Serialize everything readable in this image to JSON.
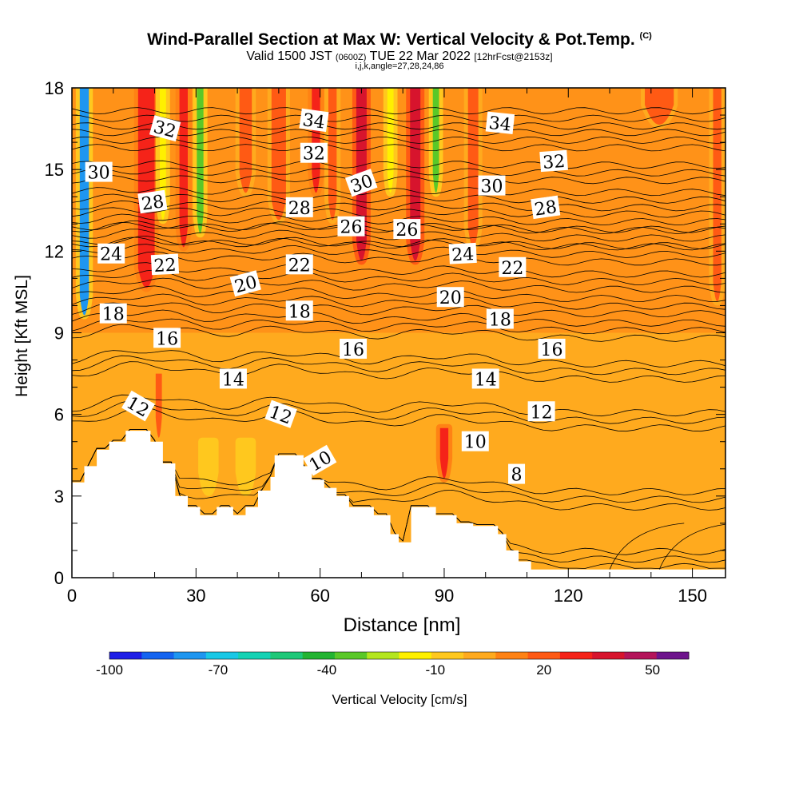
{
  "header": {
    "title": "Wind-Parallel Section at Max W: Vertical Velocity & Pot.Temp.",
    "title_mark": "(C)",
    "valid_text": "Valid 1500 JST",
    "valid_utc": "(0600Z)",
    "date_text": "TUE 22 Mar 2022",
    "forecast_text": "[12hrFcst@2153z]",
    "indices_text": "i,j,k,angle=27,28,24,86"
  },
  "chart_data": {
    "type": "heatmap",
    "xlabel": "Distance [nm]",
    "ylabel": "Height [Kft MSL]",
    "xlim": [
      0,
      158
    ],
    "ylim": [
      0,
      18
    ],
    "x_ticks": [
      0,
      30,
      60,
      90,
      120,
      150
    ],
    "y_ticks": [
      0,
      3,
      6,
      9,
      12,
      15,
      18
    ],
    "terrain": [
      [
        0,
        3.5
      ],
      [
        3,
        3.5
      ],
      [
        3,
        4.1
      ],
      [
        6,
        4.1
      ],
      [
        6,
        4.7
      ],
      [
        9,
        4.7
      ],
      [
        9,
        5.0
      ],
      [
        13,
        5.0
      ],
      [
        13,
        5.4
      ],
      [
        19,
        5.4
      ],
      [
        19,
        5.0
      ],
      [
        22,
        5.0
      ],
      [
        22,
        4.2
      ],
      [
        25,
        4.2
      ],
      [
        25,
        3.0
      ],
      [
        28,
        3.0
      ],
      [
        28,
        2.6
      ],
      [
        31,
        2.6
      ],
      [
        31,
        2.3
      ],
      [
        35,
        2.3
      ],
      [
        35,
        2.6
      ],
      [
        39,
        2.6
      ],
      [
        39,
        2.3
      ],
      [
        42,
        2.3
      ],
      [
        42,
        2.6
      ],
      [
        45,
        2.6
      ],
      [
        45,
        3.2
      ],
      [
        48,
        3.2
      ],
      [
        48,
        3.7
      ],
      [
        49,
        3.7
      ],
      [
        49,
        4.5
      ],
      [
        56,
        4.5
      ],
      [
        56,
        4.1
      ],
      [
        58,
        4.1
      ],
      [
        58,
        3.6
      ],
      [
        61,
        3.6
      ],
      [
        61,
        3.3
      ],
      [
        64,
        3.3
      ],
      [
        64,
        3.0
      ],
      [
        67,
        3.0
      ],
      [
        67,
        2.6
      ],
      [
        73,
        2.6
      ],
      [
        73,
        2.3
      ],
      [
        77,
        2.3
      ],
      [
        77,
        1.6
      ],
      [
        79,
        1.6
      ],
      [
        79,
        1.3
      ],
      [
        82,
        1.3
      ],
      [
        82,
        2.6
      ],
      [
        88,
        2.6
      ],
      [
        88,
        2.3
      ],
      [
        93,
        2.3
      ],
      [
        93,
        2.0
      ],
      [
        97,
        2.0
      ],
      [
        97,
        1.9
      ],
      [
        103,
        1.9
      ],
      [
        103,
        1.6
      ],
      [
        105,
        1.6
      ],
      [
        105,
        1.0
      ],
      [
        108,
        1.0
      ],
      [
        108,
        0.6
      ],
      [
        111,
        0.6
      ],
      [
        111,
        0.3
      ],
      [
        113,
        0.3
      ],
      [
        113,
        0.3
      ],
      [
        158,
        0.3
      ]
    ],
    "vertical_velocity_bands": [
      {
        "x": 3,
        "w": 2.2,
        "value": -75,
        "ymin": 9.5
      },
      {
        "x": 18,
        "w": 4,
        "value": 30,
        "ymin": 10.5
      },
      {
        "x": 22,
        "w": 1.5,
        "value": -20,
        "ymin": 13
      },
      {
        "x": 27,
        "w": 2,
        "value": 30,
        "ymin": 12
      },
      {
        "x": 31,
        "w": 1.6,
        "value": -30,
        "ymin": 12.5
      },
      {
        "x": 42,
        "w": 3,
        "value": 20,
        "ymin": 14
      },
      {
        "x": 50,
        "w": 3.5,
        "value": 20,
        "ymin": 13
      },
      {
        "x": 59,
        "w": 2,
        "value": 30,
        "ymin": 14
      },
      {
        "x": 63,
        "w": 2,
        "value": 20,
        "ymin": 13
      },
      {
        "x": 70,
        "w": 2.5,
        "value": 40,
        "ymin": 11.5
      },
      {
        "x": 77,
        "w": 1.5,
        "value": -20,
        "ymin": 14
      },
      {
        "x": 83,
        "w": 2.5,
        "value": 40,
        "ymin": 11.5
      },
      {
        "x": 88,
        "w": 1.5,
        "value": -30,
        "ymin": 14
      },
      {
        "x": 97,
        "w": 2.5,
        "value": 20,
        "ymin": 12
      },
      {
        "x": 142,
        "w": 7,
        "value": 20,
        "ymin": 16.5
      },
      {
        "x": 156,
        "w": 2,
        "value": 20,
        "ymin": 10
      },
      {
        "x": 21,
        "w": 1.5,
        "value": 20,
        "ymin": 5,
        "ymax": 7.5
      },
      {
        "x": 90,
        "w": 2,
        "value": 30,
        "ymin": 3.5,
        "ymax": 5.5
      },
      {
        "x": 33,
        "w": 3,
        "value": -10,
        "ymin": 3,
        "ymax": 5
      },
      {
        "x": 42,
        "w": 3,
        "value": -10,
        "ymin": 3,
        "ymax": 5
      }
    ],
    "theta_contours": [
      {
        "label": "8",
        "h0": 0.4,
        "step": 0
      },
      {
        "label": "10",
        "h0": 2.6,
        "step": 0.5
      },
      {
        "label": "12",
        "h0": 5.5,
        "step": 0.5
      },
      {
        "label": "14",
        "h0": 7.3,
        "step": 0.5
      },
      {
        "label": "16",
        "h0": 8.8,
        "step": 0.5
      },
      {
        "label": "18",
        "h0": 9.7,
        "step": 0.5
      },
      {
        "label": "20",
        "h0": 10.6,
        "step": 0.5
      },
      {
        "label": "22",
        "h0": 11.6,
        "step": 0.5
      },
      {
        "label": "24",
        "h0": 12.2,
        "step": 0.5
      },
      {
        "label": "26",
        "h0": 12.8,
        "step": 0.5
      },
      {
        "label": "28",
        "h0": 13.6,
        "step": 0.5
      },
      {
        "label": "30",
        "h0": 14.6,
        "step": 0.5
      },
      {
        "label": "32",
        "h0": 15.8,
        "step": 0.5
      },
      {
        "label": "34",
        "h0": 16.6,
        "step": 0.5
      }
    ],
    "contour_labels": [
      {
        "text": "32",
        "x": 22.5,
        "y": 16.5,
        "rot": 15
      },
      {
        "text": "34",
        "x": 58.5,
        "y": 16.8,
        "rot": 8
      },
      {
        "text": "34",
        "x": 103.5,
        "y": 16.7,
        "rot": 6
      },
      {
        "text": "30",
        "x": 6.5,
        "y": 14.9,
        "rot": 0
      },
      {
        "text": "32",
        "x": 58.5,
        "y": 15.6,
        "rot": 0
      },
      {
        "text": "32",
        "x": 116.5,
        "y": 15.3,
        "rot": -4
      },
      {
        "text": "30",
        "x": 70,
        "y": 14.5,
        "rot": -20
      },
      {
        "text": "30",
        "x": 101.5,
        "y": 14.4,
        "rot": 0
      },
      {
        "text": "28",
        "x": 19.5,
        "y": 13.8,
        "rot": -8
      },
      {
        "text": "28",
        "x": 55,
        "y": 13.6,
        "rot": 0
      },
      {
        "text": "28",
        "x": 114.5,
        "y": 13.6,
        "rot": -8
      },
      {
        "text": "26",
        "x": 67.5,
        "y": 12.9,
        "rot": 0
      },
      {
        "text": "26",
        "x": 81,
        "y": 12.8,
        "rot": 0
      },
      {
        "text": "24",
        "x": 9.5,
        "y": 11.9,
        "rot": 0
      },
      {
        "text": "24",
        "x": 94.5,
        "y": 11.9,
        "rot": -3
      },
      {
        "text": "22",
        "x": 22.5,
        "y": 11.5,
        "rot": -3
      },
      {
        "text": "22",
        "x": 55,
        "y": 11.5,
        "rot": 0
      },
      {
        "text": "22",
        "x": 106.5,
        "y": 11.4,
        "rot": 0
      },
      {
        "text": "20",
        "x": 42,
        "y": 10.8,
        "rot": -15
      },
      {
        "text": "20",
        "x": 91.5,
        "y": 10.3,
        "rot": 0
      },
      {
        "text": "18",
        "x": 10,
        "y": 9.7,
        "rot": 0
      },
      {
        "text": "18",
        "x": 55,
        "y": 9.8,
        "rot": 0
      },
      {
        "text": "18",
        "x": 103.5,
        "y": 9.5,
        "rot": 0
      },
      {
        "text": "16",
        "x": 23,
        "y": 8.8,
        "rot": 0
      },
      {
        "text": "16",
        "x": 68,
        "y": 8.4,
        "rot": 0
      },
      {
        "text": "16",
        "x": 116,
        "y": 8.4,
        "rot": 0
      },
      {
        "text": "14",
        "x": 39,
        "y": 7.3,
        "rot": 0
      },
      {
        "text": "14",
        "x": 100,
        "y": 7.3,
        "rot": 0
      },
      {
        "text": "12",
        "x": 16,
        "y": 6.3,
        "rot": 30
      },
      {
        "text": "12",
        "x": 50.5,
        "y": 6.0,
        "rot": 20
      },
      {
        "text": "12",
        "x": 113.5,
        "y": 6.1,
        "rot": 0
      },
      {
        "text": "10",
        "x": 97.5,
        "y": 5.0,
        "rot": 0
      },
      {
        "text": "10",
        "x": 60,
        "y": 4.3,
        "rot": -30
      },
      {
        "text": "8",
        "x": 107.5,
        "y": 3.8,
        "rot": 0
      }
    ],
    "colorbar": {
      "label": "Vertical Velocity [cm/s]",
      "tick_labels": [
        "-100",
        "-70",
        "-40",
        "-10",
        "20",
        "50"
      ],
      "tick_values": [
        -100,
        -70,
        -40,
        -10,
        20,
        50
      ],
      "range": [
        -100,
        60
      ],
      "colors": [
        "#1f1fe6",
        "#1464f0",
        "#1e96f0",
        "#19c8e6",
        "#14d2b4",
        "#1ec878",
        "#23b432",
        "#5ac828",
        "#b4e61e",
        "#fff000",
        "#ffc81e",
        "#ffaa1e",
        "#ff8214",
        "#ff5a14",
        "#f52319",
        "#d7142d",
        "#b4145a",
        "#6e148c"
      ]
    }
  }
}
